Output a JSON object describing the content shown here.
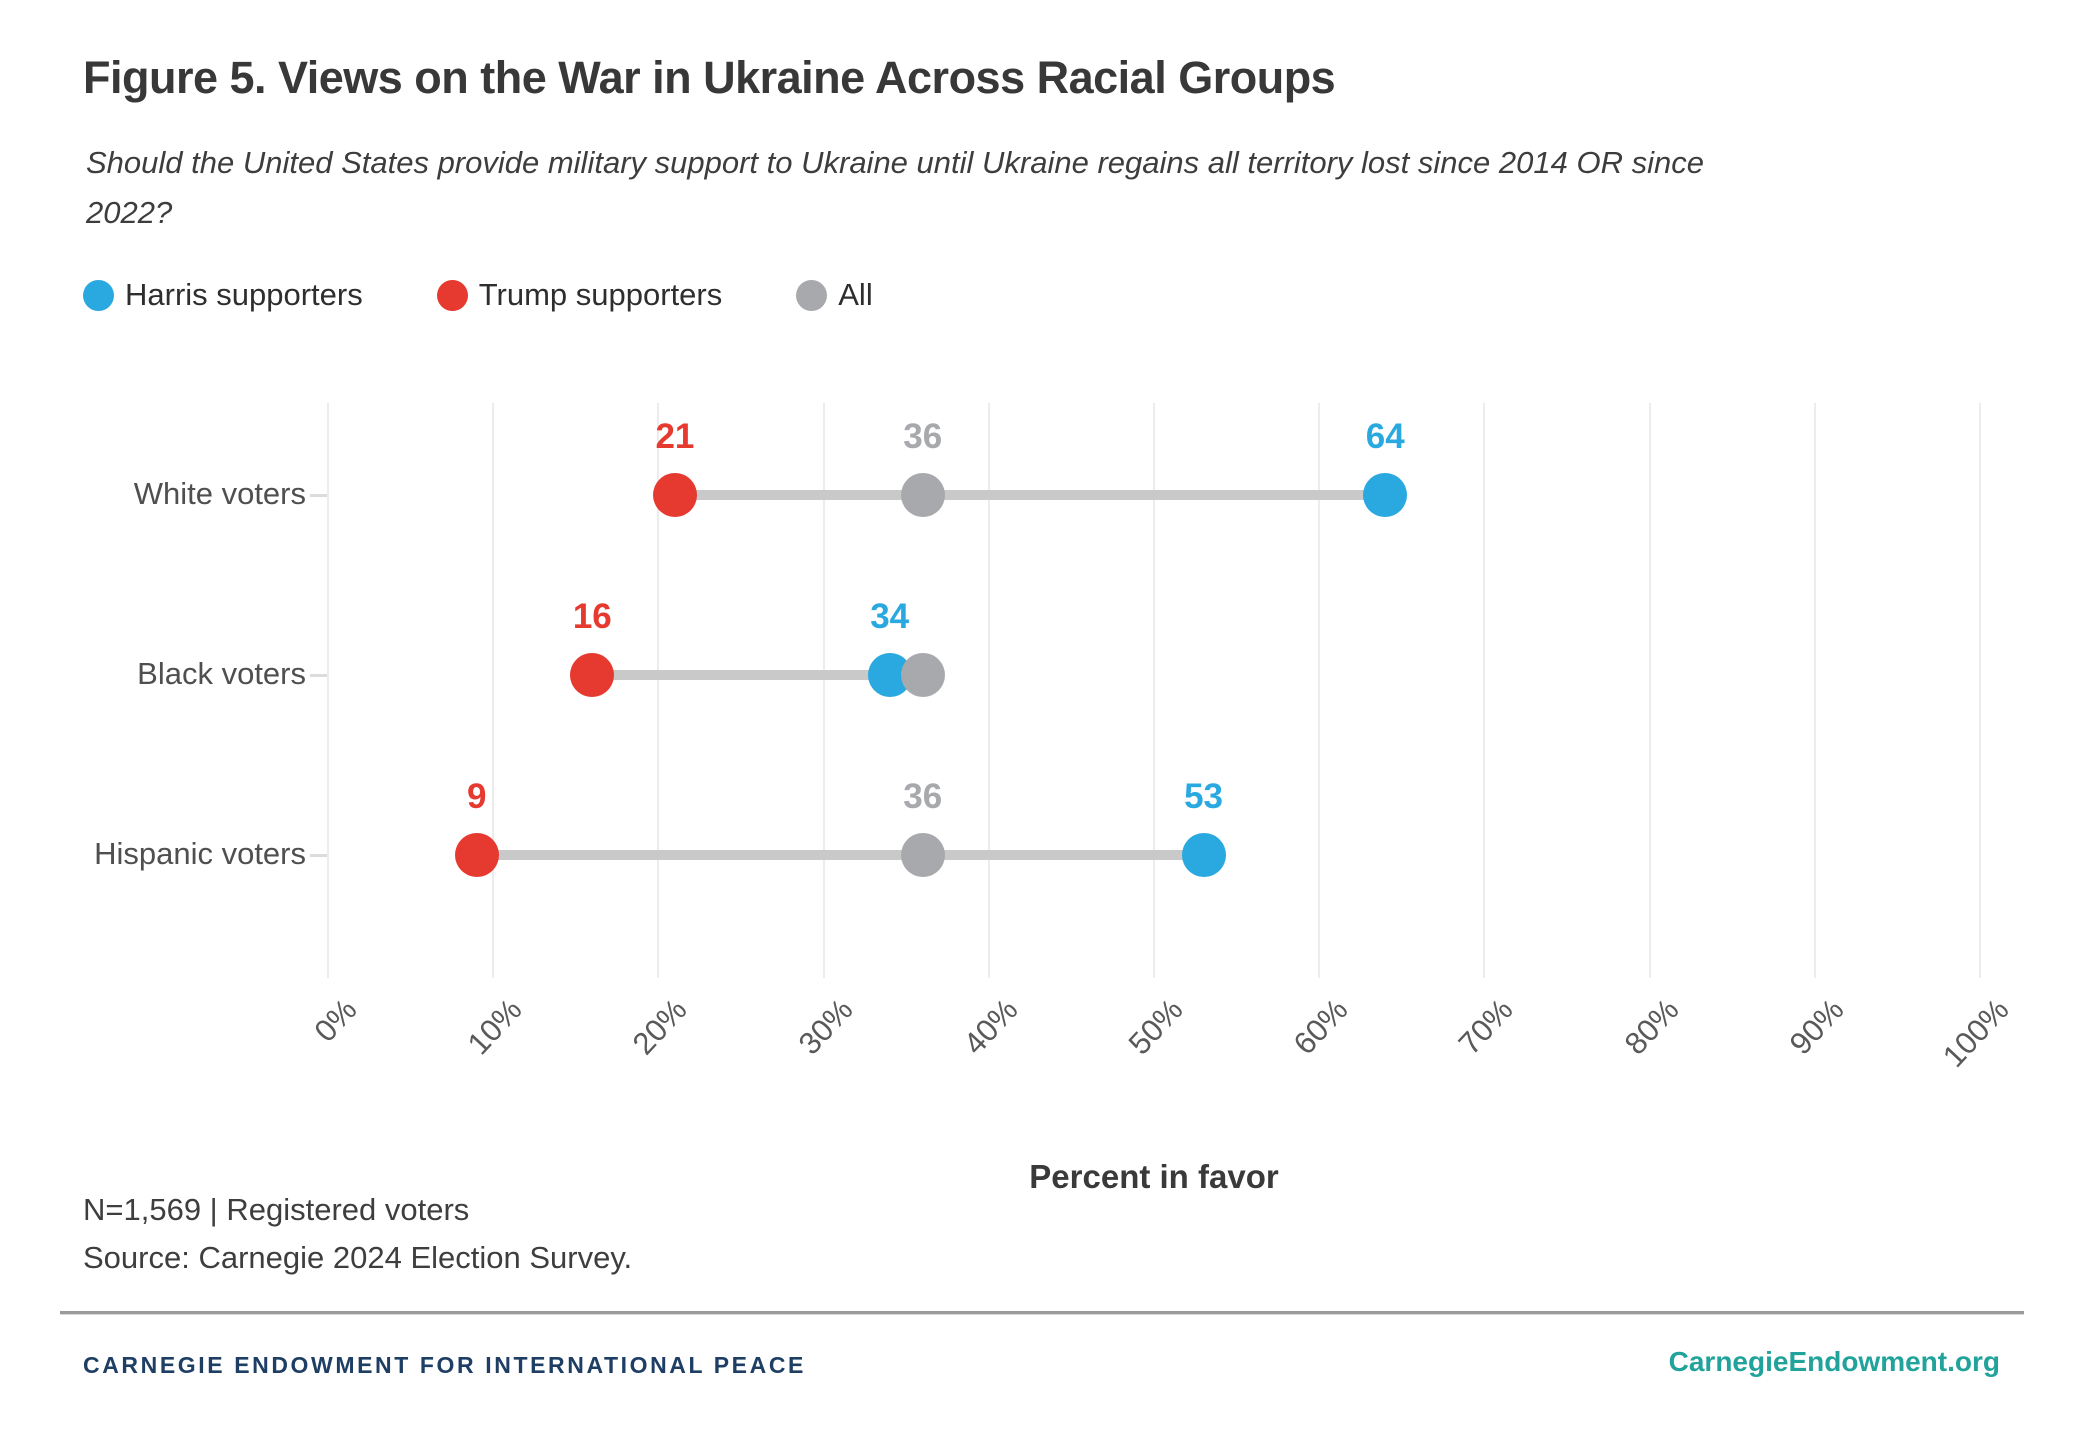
{
  "title": "Figure 5. Views on the War in Ukraine Across Racial Groups",
  "subtitle": "Should the United States provide military support to Ukraine until Ukraine regains all territory lost since 2014 OR since 2022?",
  "chart_data": {
    "type": "dumbbell-dot",
    "categories": [
      "White voters",
      "Black voters",
      "Hispanic voters"
    ],
    "series": [
      {
        "name": "Harris supporters",
        "key": "harris",
        "color": "#29a9e0",
        "values": [
          64,
          34,
          53
        ],
        "labels_shown": [
          true,
          true,
          true
        ]
      },
      {
        "name": "Trump supporters",
        "key": "trump",
        "color": "#e6392f",
        "values": [
          21,
          16,
          9
        ],
        "labels_shown": [
          true,
          true,
          true
        ]
      },
      {
        "name": "All",
        "key": "all",
        "color": "#a7a9ac",
        "values": [
          36,
          36,
          36
        ],
        "labels_shown": [
          true,
          false,
          true
        ]
      }
    ],
    "xlabel": "Percent in favor",
    "xlim": [
      0,
      100
    ],
    "x_tick_labels": [
      "0%",
      "10%",
      "20%",
      "30%",
      "40%",
      "50%",
      "60%",
      "70%",
      "80%",
      "90%",
      "100%"
    ],
    "grid": true,
    "legend_position": "top-left"
  },
  "notes": {
    "sample": "N=1,569 | Registered voters",
    "source": "Source: Carnegie 2024 Election Survey."
  },
  "footer": {
    "org": "CARNEGIE ENDOWMENT FOR INTERNATIONAL PEACE",
    "site": "CarnegieEndowment.org"
  },
  "colors": {
    "harris_blue": "#29a9e0",
    "trump_red": "#e6392f",
    "all_gray": "#a7a9ac",
    "connector": "#c9c9c9",
    "gridline": "#ececec",
    "navy": "#1e3e64",
    "teal": "#21a39b"
  }
}
